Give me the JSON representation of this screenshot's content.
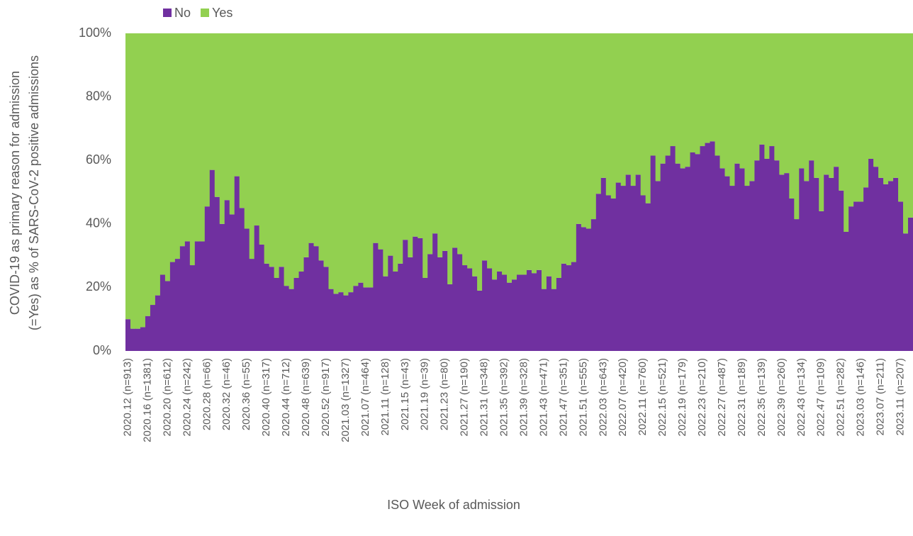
{
  "chart_data": {
    "type": "stacked-bar-100",
    "x_label": "ISO Week of admission",
    "y_label": [
      "COVID-19 as primary reason for admission",
      "(=Yes) as % of SARS-CoV-2 positive admissions"
    ],
    "categories": [
      "2020.12 (n=913)",
      null,
      null,
      null,
      "2020.16 (n=1381)",
      null,
      null,
      null,
      "2020.20 (n=612)",
      null,
      null,
      null,
      "2020.24 (n=242)",
      null,
      null,
      null,
      "2020.28 (n=66)",
      null,
      null,
      null,
      "2020.32 (n=46)",
      null,
      null,
      null,
      "2020.36 (n=55)",
      null,
      null,
      null,
      "2020.40 (n=317)",
      null,
      null,
      null,
      "2020.44 (n=712)",
      null,
      null,
      null,
      "2020.48 (n=639)",
      null,
      null,
      null,
      "2020.52 (n=917)",
      null,
      null,
      null,
      "2021.03 (n=1327)",
      null,
      null,
      null,
      "2021.07 (n=464)",
      null,
      null,
      null,
      "2021.11 (n=128)",
      null,
      null,
      null,
      "2021.15 (n=43)",
      null,
      null,
      null,
      "2021.19 (n=39)",
      null,
      null,
      null,
      "2021.23 (n=80)",
      null,
      null,
      null,
      "2021.27 (n=190)",
      null,
      null,
      null,
      "2021.31 (n=348)",
      null,
      null,
      null,
      "2021.35 (n=392)",
      null,
      null,
      null,
      "2021.39 (n=328)",
      null,
      null,
      null,
      "2021.43 (n=471)",
      null,
      null,
      null,
      "2021.47 (n=351)",
      null,
      null,
      null,
      "2021.51 (n=555)",
      null,
      null,
      null,
      "2022.03 (n=643)",
      null,
      null,
      null,
      "2022.07 (n=420)",
      null,
      null,
      null,
      "2022.11 (n=760)",
      null,
      null,
      null,
      "2022.15 (n=521)",
      null,
      null,
      null,
      "2022.19 (n=179)",
      null,
      null,
      null,
      "2022.23 (n=210)",
      null,
      null,
      null,
      "2022.27 (n=487)",
      null,
      null,
      null,
      "2022.31 (n=189)",
      null,
      null,
      null,
      "2022.35 (n=139)",
      null,
      null,
      null,
      "2022.39 (n=260)",
      null,
      null,
      null,
      "2022.43 (n=134)",
      null,
      null,
      null,
      "2022.47 (n=109)",
      null,
      null,
      null,
      "2022.51 (n=282)",
      null,
      null,
      null,
      "2023.03 (n=146)",
      null,
      null,
      null,
      "2023.07 (n=211)",
      null,
      null,
      null,
      "2023.11 (n=207)",
      null,
      null
    ],
    "series": [
      {
        "name": "No",
        "color": "#7030a0",
        "values": [
          10,
          7,
          7,
          7.5,
          11,
          14.5,
          17.5,
          24,
          22,
          28,
          29,
          33,
          34.5,
          27,
          34.5,
          34.5,
          45.5,
          57,
          48.5,
          40,
          47.5,
          43,
          55,
          45,
          38.5,
          29,
          39.5,
          33.5,
          27.5,
          26.5,
          23,
          26.5,
          20.5,
          19.5,
          23,
          25,
          29.5,
          34,
          33,
          28.5,
          26.5,
          19.5,
          18,
          18.5,
          17.5,
          18.5,
          20.5,
          21.5,
          20,
          20,
          34,
          32,
          23.5,
          30,
          25,
          27.5,
          35,
          29.5,
          36,
          35.5,
          23,
          30.5,
          37,
          29.5,
          31.5,
          21,
          32.5,
          30.5,
          27,
          26,
          23.5,
          19,
          28.5,
          26,
          22.5,
          25,
          24,
          21.5,
          22.5,
          24,
          24,
          25.5,
          24.5,
          25.5,
          19.5,
          23.5,
          19.5,
          23,
          27.5,
          27,
          28,
          40,
          39,
          38.5,
          41.5,
          49.5,
          54.5,
          49,
          48,
          53,
          52,
          55.5,
          52,
          55.5,
          49,
          46.5,
          61.5,
          53.5,
          59,
          61.5,
          64.5,
          59,
          57.5,
          58,
          62.5,
          62,
          64.5,
          65.5,
          66,
          61.5,
          57.5,
          55,
          52,
          59,
          57.5,
          52,
          53.5,
          60,
          65,
          60.5,
          64.5,
          60,
          55.5,
          56,
          48,
          41.5,
          57.5,
          53.5,
          60,
          54.5,
          44,
          55.5,
          54.5,
          58,
          50.5,
          37.5,
          45.5,
          47,
          47,
          51.5,
          60.5,
          58,
          54.5,
          52.5,
          53.5,
          54.5,
          47,
          37,
          42
        ]
      },
      {
        "name": "Yes",
        "color": "#92d050",
        "values": [
          90,
          93,
          93,
          92.5,
          89,
          85.5,
          82.5,
          76,
          78,
          72,
          71,
          67,
          65.5,
          73,
          65.5,
          65.5,
          54.5,
          43,
          51.5,
          60,
          52.5,
          57,
          45,
          55,
          61.5,
          71,
          60.5,
          66.5,
          72.5,
          73.5,
          77,
          73.5,
          79.5,
          80.5,
          77,
          75,
          70.5,
          66,
          67,
          71.5,
          73.5,
          80.5,
          82,
          81.5,
          82.5,
          81.5,
          79.5,
          78.5,
          80,
          80,
          66,
          68,
          76.5,
          70,
          75,
          72.5,
          65,
          70.5,
          64,
          64.5,
          77,
          69.5,
          63,
          70.5,
          68.5,
          79,
          67.5,
          69.5,
          73,
          74,
          76.5,
          81,
          71.5,
          74,
          77.5,
          75,
          76,
          78.5,
          77.5,
          76,
          76,
          74.5,
          75.5,
          74.5,
          80.5,
          76.5,
          80.5,
          77,
          72.5,
          73,
          72,
          60,
          61,
          61.5,
          58.5,
          50.5,
          45.5,
          51,
          52,
          47,
          48,
          44.5,
          48,
          44.5,
          51,
          53.5,
          38.5,
          46.5,
          41,
          38.5,
          35.5,
          41,
          42.5,
          42,
          37.5,
          38,
          35.5,
          34.5,
          34,
          38.5,
          42.5,
          45,
          48,
          41,
          42.5,
          48,
          46.5,
          40,
          35,
          39.5,
          35.5,
          40,
          44.5,
          44,
          52,
          58.5,
          42.5,
          46.5,
          40,
          45.5,
          56,
          44.5,
          45.5,
          42,
          49.5,
          62.5,
          54.5,
          53,
          53,
          48.5,
          39.5,
          42,
          45.5,
          47.5,
          46.5,
          45.5,
          53,
          63,
          58
        ]
      }
    ],
    "ylim": [
      0,
      100
    ],
    "yticks": [
      {
        "value": 0,
        "label": "0%"
      },
      {
        "value": 20,
        "label": "20%"
      },
      {
        "value": 40,
        "label": "40%"
      },
      {
        "value": 60,
        "label": "60%"
      },
      {
        "value": 80,
        "label": "80%"
      },
      {
        "value": 100,
        "label": "100%"
      }
    ],
    "grid": false,
    "legend": "top"
  }
}
